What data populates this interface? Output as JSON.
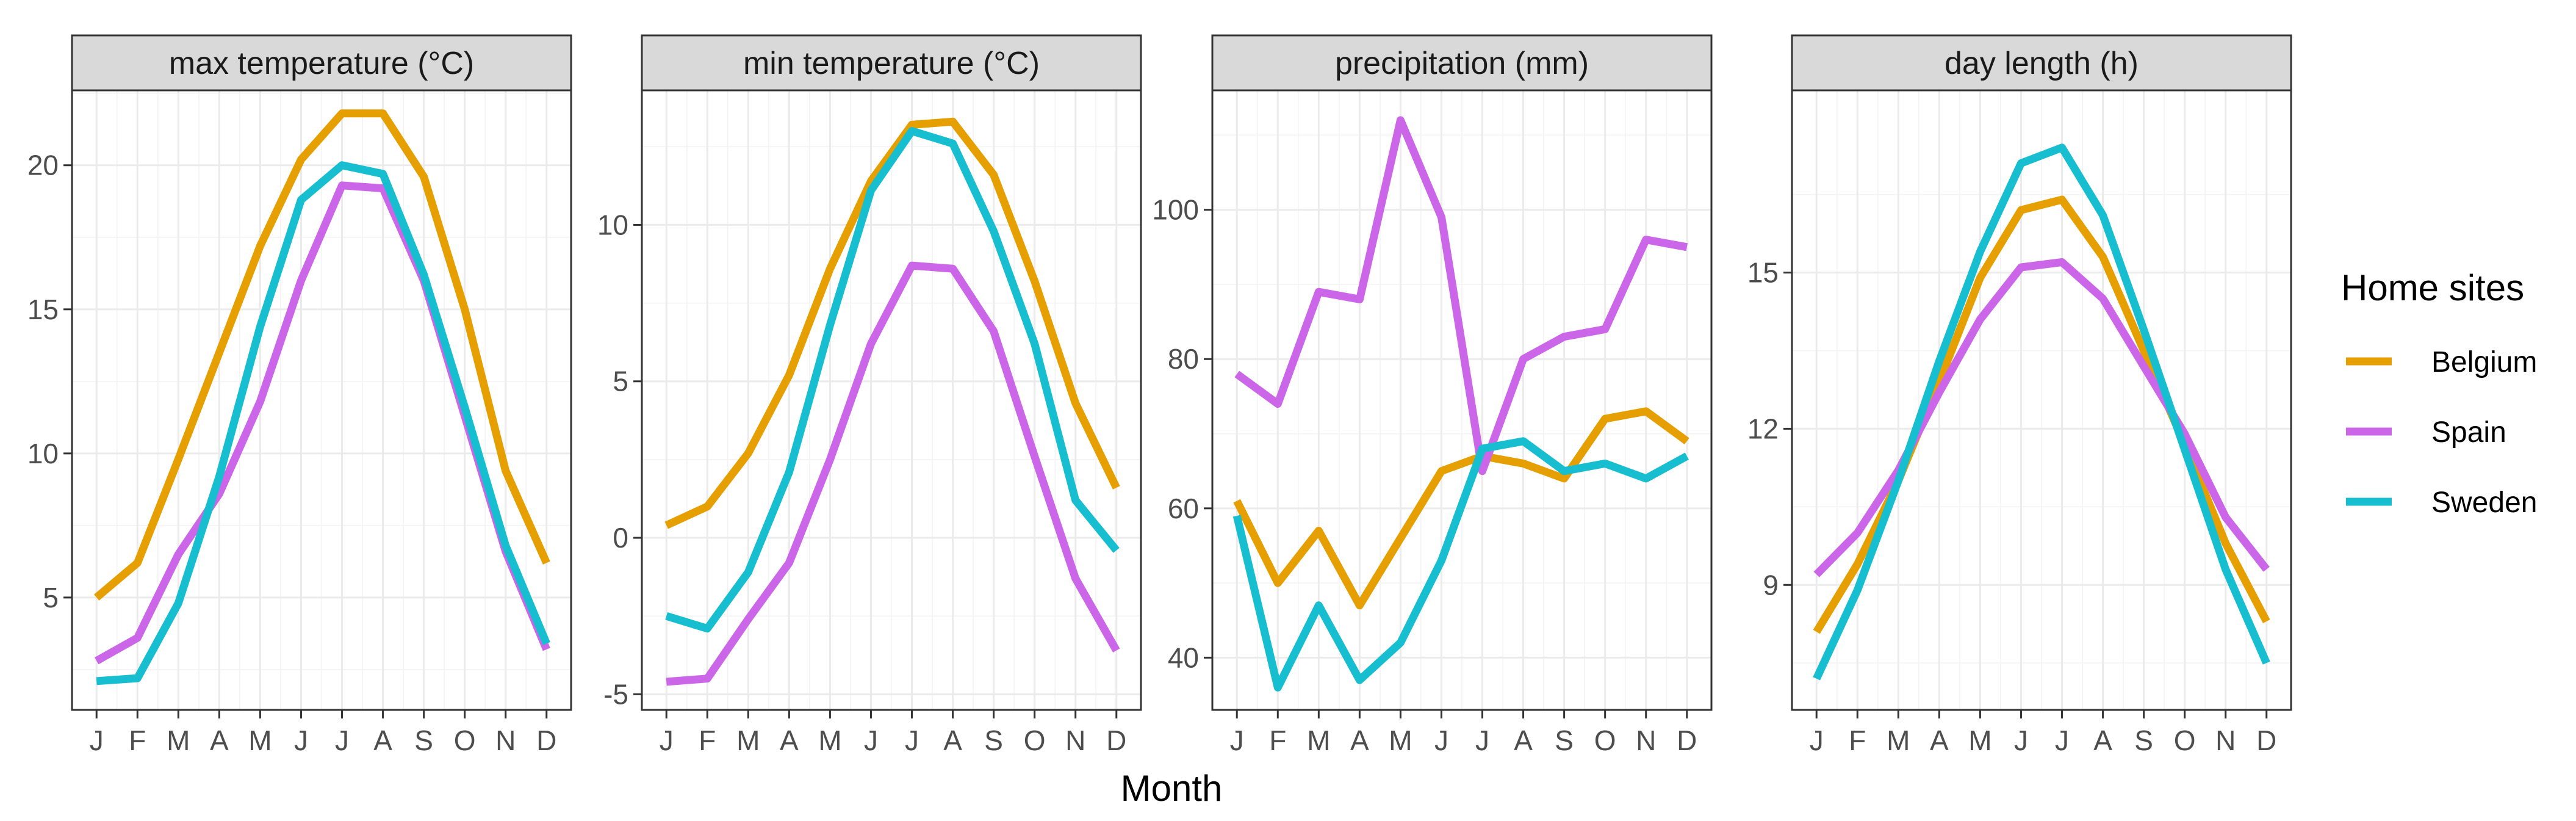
{
  "xlabel": "Month",
  "legend": {
    "title": "Home sites",
    "entries": [
      {
        "name": "Belgium",
        "color": "#E69F00"
      },
      {
        "name": "Spain",
        "color": "#CC66E8"
      },
      {
        "name": "Sweden",
        "color": "#17BECF"
      }
    ]
  },
  "chart_data": [
    {
      "type": "line",
      "title": "max temperature (°C)",
      "x": [
        "J",
        "F",
        "M",
        "A",
        "M",
        "J",
        "J",
        "A",
        "S",
        "O",
        "N",
        "D"
      ],
      "ylim": [
        1.1,
        22.6
      ],
      "yticks": [
        5,
        10,
        15,
        20
      ],
      "ytick_labels": [
        "5",
        "10",
        "15",
        "20"
      ],
      "series": [
        {
          "name": "Belgium",
          "values": [
            5.0,
            6.2,
            9.8,
            13.5,
            17.2,
            20.2,
            21.8,
            21.8,
            19.6,
            15.0,
            9.4,
            6.2
          ]
        },
        {
          "name": "Spain",
          "values": [
            2.8,
            3.6,
            6.5,
            8.6,
            11.8,
            16.0,
            19.3,
            19.2,
            16.0,
            11.3,
            6.6,
            3.2
          ]
        },
        {
          "name": "Sweden",
          "values": [
            2.1,
            2.2,
            4.8,
            9.2,
            14.4,
            18.8,
            20.0,
            19.7,
            16.2,
            11.6,
            6.8,
            3.4
          ]
        }
      ]
    },
    {
      "type": "line",
      "title": "min temperature (°C)",
      "x": [
        "J",
        "F",
        "M",
        "A",
        "M",
        "J",
        "J",
        "A",
        "S",
        "O",
        "N",
        "D"
      ],
      "ylim": [
        -5.5,
        14.3
      ],
      "yticks": [
        -5,
        0,
        5,
        10
      ],
      "ytick_labels": [
        "-5",
        "0",
        "5",
        "10"
      ],
      "series": [
        {
          "name": "Belgium",
          "values": [
            0.4,
            1.0,
            2.7,
            5.2,
            8.6,
            11.4,
            13.2,
            13.3,
            11.6,
            8.2,
            4.3,
            1.6
          ]
        },
        {
          "name": "Spain",
          "values": [
            -4.6,
            -4.5,
            -2.6,
            -0.8,
            2.5,
            6.2,
            8.7,
            8.6,
            6.6,
            2.6,
            -1.3,
            -3.6
          ]
        },
        {
          "name": "Sweden",
          "values": [
            -2.5,
            -2.9,
            -1.1,
            2.1,
            6.8,
            11.1,
            13.0,
            12.6,
            9.8,
            6.2,
            1.2,
            -0.4
          ]
        }
      ]
    },
    {
      "type": "line",
      "title": "precipitation (mm)",
      "x": [
        "J",
        "F",
        "M",
        "A",
        "M",
        "J",
        "J",
        "A",
        "S",
        "O",
        "N",
        "D"
      ],
      "ylim": [
        33,
        116
      ],
      "yticks": [
        40,
        60,
        80,
        100
      ],
      "ytick_labels": [
        "40",
        "60",
        "80",
        "100"
      ],
      "series": [
        {
          "name": "Belgium",
          "values": [
            61,
            50,
            57,
            47,
            56,
            65,
            67,
            66,
            64,
            72,
            73,
            69
          ]
        },
        {
          "name": "Spain",
          "values": [
            78,
            74,
            89,
            88,
            112,
            99,
            65,
            80,
            83,
            84,
            96,
            95
          ]
        },
        {
          "name": "Sweden",
          "values": [
            59,
            36,
            47,
            37,
            42,
            53,
            68,
            69,
            65,
            66,
            64,
            67
          ]
        }
      ]
    },
    {
      "type": "line",
      "title": "day length (h)",
      "x": [
        "J",
        "F",
        "M",
        "A",
        "M",
        "J",
        "J",
        "A",
        "S",
        "O",
        "N",
        "D"
      ],
      "ylim": [
        6.6,
        18.5
      ],
      "yticks": [
        9,
        12,
        15
      ],
      "ytick_labels": [
        "9",
        "12",
        "15"
      ],
      "series": [
        {
          "name": "Belgium",
          "values": [
            8.1,
            9.4,
            11.0,
            12.9,
            14.9,
            16.2,
            16.4,
            15.3,
            13.5,
            11.7,
            9.8,
            8.3
          ]
        },
        {
          "name": "Spain",
          "values": [
            9.2,
            10.0,
            11.2,
            12.7,
            14.1,
            15.1,
            15.2,
            14.5,
            13.2,
            11.9,
            10.3,
            9.3
          ]
        },
        {
          "name": "Sweden",
          "values": [
            7.2,
            8.9,
            11.0,
            13.3,
            15.4,
            17.1,
            17.4,
            16.1,
            13.9,
            11.6,
            9.3,
            7.5
          ]
        }
      ]
    }
  ]
}
